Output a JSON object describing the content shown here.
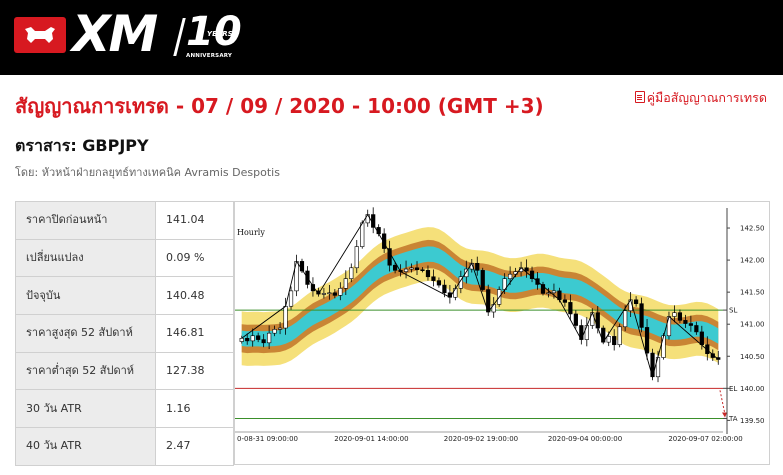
{
  "header": {
    "logo_text": "XM",
    "anniversary_number": "10",
    "anniversary_years": "YEARS",
    "anniversary_label": "ANNIVERSARY",
    "brand_color": "#d71920",
    "logo_icon": "bull-icon"
  },
  "page": {
    "title": "สัญญาณการเทรด - 07 / 09 / 2020 - 10:00 (GMT +3)",
    "guide_link": "คู่มือสัญญาณการเทรด",
    "guide_icon": "pdf-icon",
    "instrument": "ตราสาร: GBPJPY",
    "byline": "โดย: หัวหน้าฝ่ายกลยุทธ์ทางเทคนิค Avramis Despotis"
  },
  "stats": [
    {
      "label": "ราคาปิดก่อนหน้า",
      "value": "141.04"
    },
    {
      "label": "เปลี่ยนแปลง",
      "value": "0.09 %"
    },
    {
      "label": "ปัจจุบัน",
      "value": "140.48"
    },
    {
      "label": "ราคาสูงสุด 52 สัปดาห์",
      "value": "146.81"
    },
    {
      "label": "ราคาต่ำสุด 52 สัปดาห์",
      "value": "127.38"
    },
    {
      "label": "30 วัน ATR",
      "value": "1.16"
    },
    {
      "label": "40 วัน ATR",
      "value": "2.47"
    }
  ],
  "chart_data": {
    "type": "candlestick",
    "timeframe": "Hourly",
    "x_tick_labels": [
      "0-08-31 09:00:00",
      "2020-09-01 14:00:00",
      "2020-09-02 19:00:00",
      "2020-09-04 00:00:00",
      "2020-09-07 02:00:00"
    ],
    "y_tick_labels": [
      "142.50",
      "142.00",
      "141.50",
      "141.00",
      "140.50",
      "140.00",
      "139.50"
    ],
    "ylim": [
      139.35,
      142.75
    ],
    "levels": [
      {
        "name": "SL",
        "value": 141.22,
        "color": "#3a8f2a"
      },
      {
        "name": "EL",
        "value": 140.0,
        "color": "#c62828"
      },
      {
        "name": "TA",
        "value": 139.53,
        "color": "#3a8f2a"
      }
    ],
    "trend_line_color": "#000000",
    "band_colors": {
      "outer": "#f5e07a",
      "middle": "#c98535",
      "inner": "#3ccad0"
    },
    "candle_colors": {
      "up": "#ffffff",
      "down": "#000000",
      "outline": "#000000"
    },
    "close": [
      140.78,
      140.74,
      140.82,
      140.76,
      140.71,
      140.86,
      140.92,
      140.94,
      141.28,
      141.52,
      141.98,
      141.83,
      141.62,
      141.52,
      141.47,
      141.48,
      141.49,
      141.45,
      141.56,
      141.71,
      141.88,
      142.21,
      142.58,
      142.71,
      142.51,
      142.41,
      142.18,
      141.92,
      141.84,
      141.82,
      141.86,
      141.88,
      141.85,
      141.84,
      141.74,
      141.68,
      141.61,
      141.49,
      141.42,
      141.56,
      141.74,
      141.86,
      141.95,
      141.84,
      141.54,
      141.19,
      141.31,
      141.54,
      141.71,
      141.78,
      141.82,
      141.88,
      141.83,
      141.71,
      141.62,
      141.48,
      141.49,
      141.52,
      141.38,
      141.34,
      141.16,
      140.98,
      140.76,
      140.98,
      141.18,
      140.94,
      140.72,
      140.81,
      140.68,
      140.96,
      141.21,
      141.38,
      141.32,
      140.95,
      140.55,
      140.18,
      140.48,
      140.82,
      141.12,
      141.18,
      141.06,
      141.01,
      140.98,
      140.88,
      140.68,
      140.54,
      140.48,
      140.45
    ]
  }
}
